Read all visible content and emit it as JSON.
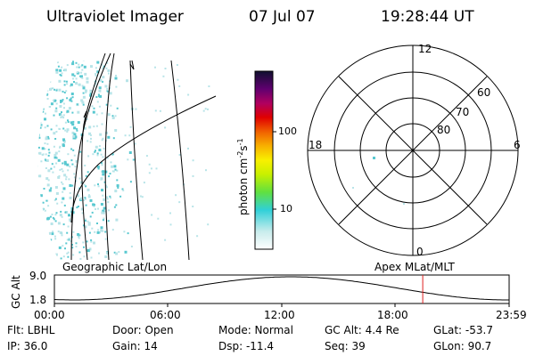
{
  "header": {
    "instrument": "Ultraviolet Imager",
    "date": "07 Jul 07",
    "time": "19:28:44 UT"
  },
  "colorbar": {
    "unit_label": "photon cm",
    "unit_exp1": "-2",
    "unit_mid": "s",
    "unit_exp2": "-1",
    "tick_100": "100",
    "tick_10": "10"
  },
  "polar": {
    "mlt_top": "12",
    "mlt_bottom": "0",
    "mlt_left": "18",
    "mlt_right": "6",
    "lat_60": "60",
    "lat_70": "70",
    "lat_80": "80"
  },
  "map_labels": {
    "geo": "Geographic Lat/Lon",
    "apex": "Apex  MLat/MLT"
  },
  "orbit": {
    "axis_label": "GC Alt",
    "ymax": "9.0",
    "ymin": "1.8",
    "times": [
      "00:00",
      "06:00",
      "12:00",
      "18:00",
      "23:59"
    ],
    "marker_fraction": 0.81
  },
  "info": {
    "flt": "Flt: LBHL",
    "ip": "IP: 36.0",
    "door": "Door: Open",
    "gain": "Gain: 14",
    "mode": "Mode: Normal",
    "dsp": "Dsp:  -11.4",
    "gcalt": "GC Alt: 4.4 Re",
    "seq": "Seq: 39",
    "glat": "GLat: -53.7",
    "glon": "GLon:  90.7"
  },
  "colors": {
    "marker": "#e02020",
    "speckle": "#58c8d0",
    "speckle_light": "#b8e4e8"
  }
}
